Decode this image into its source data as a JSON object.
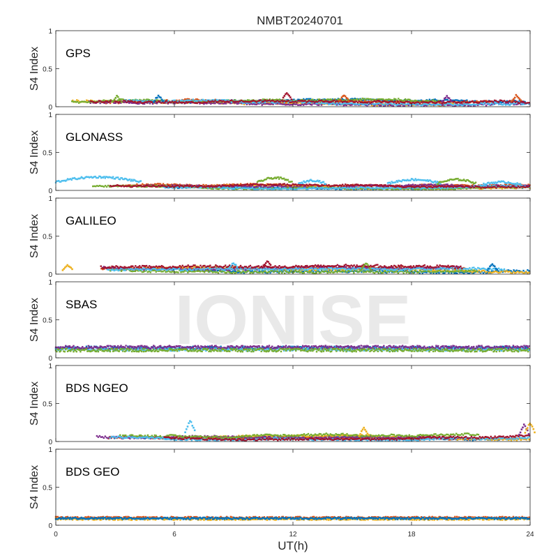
{
  "figure": {
    "title": "NMBT20240701",
    "xlabel": "UT(h)",
    "watermark": "IONISE"
  },
  "colors": {
    "series": [
      "#0072BD",
      "#D95319",
      "#EDB120",
      "#7E2F8E",
      "#77AC30",
      "#4DBEEE",
      "#A2142F"
    ],
    "axis": "#262626",
    "watermark": "#e6e6e6",
    "panel_bg": "#ffffff"
  },
  "chart_data": [
    {
      "type": "scatter",
      "panel": "GPS",
      "ylabel": "S4 Index",
      "xlim": [
        0,
        24
      ],
      "ylim": [
        0,
        1
      ],
      "yticks": [
        0,
        0.5,
        1
      ],
      "ytick_labels": [
        "0",
        "0.5",
        "1"
      ],
      "baseline_s4": 0.06,
      "noise": 0.025,
      "n_tracks": 7,
      "spikes": [
        {
          "x": 3.1,
          "y": 0.14
        },
        {
          "x": 5.2,
          "y": 0.15
        },
        {
          "x": 11.7,
          "y": 0.19
        },
        {
          "x": 14.6,
          "y": 0.16
        },
        {
          "x": 19.8,
          "y": 0.14
        },
        {
          "x": 23.3,
          "y": 0.15
        }
      ]
    },
    {
      "type": "scatter",
      "panel": "GLONASS",
      "ylabel": "S4 Index",
      "xlim": [
        0,
        24
      ],
      "ylim": [
        0,
        1
      ],
      "yticks": [
        0,
        0.5,
        1
      ],
      "ytick_labels": [
        "0",
        "0.5",
        "1"
      ],
      "baseline_s4": 0.05,
      "noise": 0.02,
      "n_tracks": 7,
      "arcs": [
        {
          "x0": 0,
          "x1": 4.3,
          "y": 0.16,
          "series": 5
        },
        {
          "x0": 10.2,
          "x1": 12.0,
          "y": 0.15,
          "series": 4
        },
        {
          "x0": 12.3,
          "x1": 13.7,
          "y": 0.12,
          "series": 5
        },
        {
          "x0": 16.8,
          "x1": 19.5,
          "y": 0.13,
          "series": 5
        },
        {
          "x0": 19.3,
          "x1": 21.3,
          "y": 0.13,
          "series": 4
        },
        {
          "x0": 21.5,
          "x1": 23.6,
          "y": 0.1,
          "series": 5
        }
      ]
    },
    {
      "type": "scatter",
      "panel": "GALILEO",
      "ylabel": "S4 Index",
      "xlim": [
        0,
        24
      ],
      "ylim": [
        0,
        1
      ],
      "yticks": [
        0,
        0.5,
        1
      ],
      "ytick_labels": [
        "0",
        "0.5",
        "1"
      ],
      "baseline_s4": 0.07,
      "noise": 0.03,
      "n_tracks": 7,
      "spikes": [
        {
          "x": 0.6,
          "y": 0.12
        },
        {
          "x": 9.0,
          "y": 0.15
        },
        {
          "x": 10.7,
          "y": 0.18
        },
        {
          "x": 15.7,
          "y": 0.14
        },
        {
          "x": 22.1,
          "y": 0.13
        }
      ]
    },
    {
      "type": "scatter",
      "panel": "SBAS",
      "ylabel": "S4 Index",
      "xlim": [
        0,
        24
      ],
      "ylim": [
        0,
        1
      ],
      "yticks": [
        0,
        0.5,
        1
      ],
      "ytick_labels": [
        "0",
        "0.5",
        "1"
      ],
      "baseline_s4": 0.12,
      "noise": 0.02,
      "n_tracks": 4,
      "levels": [
        {
          "series": 0,
          "y": 0.13
        },
        {
          "series": 5,
          "y": 0.11
        },
        {
          "series": 3,
          "y": 0.14
        },
        {
          "series": 4,
          "y": 0.1
        }
      ]
    },
    {
      "type": "scatter",
      "panel": "BDS NGEO",
      "ylabel": "S4 Index",
      "xlim": [
        0,
        24
      ],
      "ylim": [
        0,
        1
      ],
      "yticks": [
        0,
        0.5,
        1
      ],
      "ytick_labels": [
        "0",
        "0.5",
        "1"
      ],
      "baseline_s4": 0.06,
      "noise": 0.025,
      "n_tracks": 7,
      "spikes": [
        {
          "x": 6.8,
          "y": 0.28
        },
        {
          "x": 15.6,
          "y": 0.18
        },
        {
          "x": 23.7,
          "y": 0.22
        },
        {
          "x": 24.0,
          "y": 0.25
        }
      ]
    },
    {
      "type": "scatter",
      "panel": "BDS GEO",
      "ylabel": "S4 Index",
      "xlim": [
        0,
        24
      ],
      "ylim": [
        0,
        1
      ],
      "yticks": [
        0,
        0.5,
        1
      ],
      "ytick_labels": [
        "0",
        "0.5",
        "1"
      ],
      "baseline_s4": 0.09,
      "noise": 0.012,
      "n_tracks": 3,
      "levels": [
        {
          "series": 1,
          "y": 0.1
        },
        {
          "series": 2,
          "y": 0.08
        },
        {
          "series": 0,
          "y": 0.09
        }
      ]
    }
  ],
  "xaxis": {
    "ticks": [
      0,
      6,
      12,
      18,
      24
    ],
    "tick_labels": [
      "0",
      "6",
      "12",
      "18",
      "24"
    ]
  }
}
